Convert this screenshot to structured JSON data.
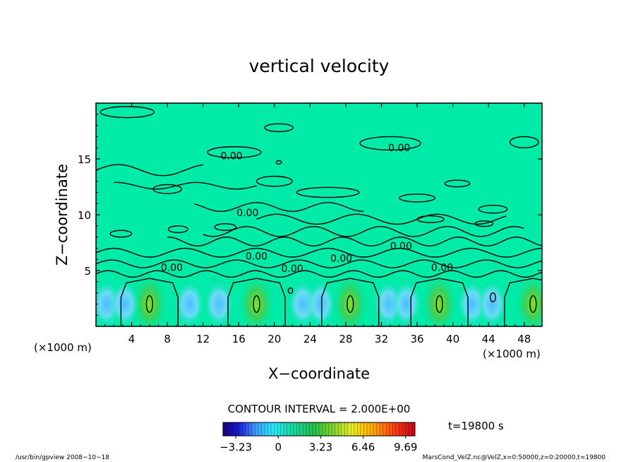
{
  "chart_data": {
    "type": "heatmap",
    "title": "vertical velocity",
    "xlabel": "X−coordinate",
    "ylabel": "Z−coordinate",
    "xlim": [
      0,
      50
    ],
    "ylim": [
      0,
      20
    ],
    "x_ticks": [
      4,
      8,
      12,
      16,
      20,
      24,
      28,
      32,
      36,
      40,
      44,
      48
    ],
    "y_ticks": [
      5,
      10,
      15
    ],
    "x_unit": "(×1000 m)",
    "y_unit": "(×1000 m)",
    "contour_interval": "CONTOUR INTERVAL = 2.000E+00",
    "time_label": "t=19800 s",
    "contour_labels": [
      {
        "text": "0.00",
        "x": 15.2,
        "z": 15.3
      },
      {
        "text": "0.00",
        "x": 34.0,
        "z": 16.0
      },
      {
        "text": "0.00",
        "x": 17.0,
        "z": 10.2
      },
      {
        "text": "0.00",
        "x": 18.0,
        "z": 6.3
      },
      {
        "text": "0.00",
        "x": 8.5,
        "z": 5.3
      },
      {
        "text": "0.00",
        "x": 22.0,
        "z": 5.2
      },
      {
        "text": "0.00",
        "x": 27.5,
        "z": 6.1
      },
      {
        "text": "0.00",
        "x": 34.2,
        "z": 7.2
      },
      {
        "text": "0.00",
        "x": 38.8,
        "z": 5.3
      }
    ],
    "updrafts_x": [
      6,
      18,
      28.5,
      38.5,
      49
    ],
    "colorbar": {
      "min": -4.2,
      "max": 10.4,
      "tick_labels": [
        "−3.23",
        "0",
        "3.23",
        "6.46",
        "9.69"
      ],
      "tick_values": [
        -3.23,
        0,
        3.23,
        6.46,
        9.69
      ]
    },
    "grid": false
  },
  "footer": {
    "left": "/usr/bin/gpview   2008−10−18",
    "right": "MarsCond_VelZ.nc@VelZ,x=0:50000,z=0:20000,t=19800"
  }
}
